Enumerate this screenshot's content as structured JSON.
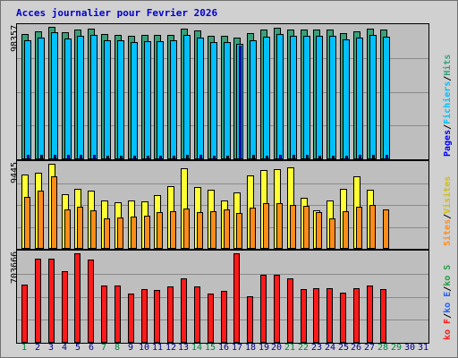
{
  "title": "Acces journalier pour Fevrier 2026",
  "colors": {
    "hits": "#3aa07a",
    "files": "#00c0ff",
    "pages": "#0000ff",
    "visits": "#ffff33",
    "sites": "#ff8c1a",
    "kbytes": "#ff1a1a",
    "weekday_label": "#000080",
    "weekend_label": "#008040"
  },
  "chart_data": [
    {
      "type": "bar",
      "name": "hits-files-pages",
      "ymax_label": "98357",
      "ylim": [
        0,
        98357
      ],
      "categories": [
        "1",
        "2",
        "3",
        "4",
        "5",
        "6",
        "7",
        "8",
        "9",
        "10",
        "11",
        "12",
        "13",
        "14",
        "15",
        "16",
        "17",
        "18",
        "19",
        "20",
        "21",
        "22",
        "23",
        "24",
        "25",
        "26",
        "27",
        "28"
      ],
      "legend": [
        {
          "key": "pages",
          "label": "Pages"
        },
        {
          "key": "files",
          "label": "Fichiers"
        },
        {
          "key": "hits",
          "label": "Hits"
        }
      ],
      "series": [
        {
          "name": "Hits",
          "key": "hits",
          "values": [
            92800,
            95100,
            98357,
            94200,
            96500,
            96900,
            93100,
            92500,
            91800,
            92100,
            92400,
            92600,
            97300,
            95600,
            92000,
            91500,
            90700,
            93400,
            96200,
            97600,
            96200,
            96400,
            96600,
            96300,
            93600,
            95200,
            96800,
            96100
          ]
        },
        {
          "name": "Fichiers",
          "key": "files",
          "values": [
            88100,
            90300,
            94100,
            89700,
            91800,
            92100,
            88600,
            88100,
            86900,
            87400,
            87800,
            88100,
            92400,
            90600,
            87300,
            86900,
            85900,
            88600,
            91300,
            92900,
            91400,
            91700,
            91900,
            91700,
            88900,
            90400,
            92100,
            91300
          ]
        },
        {
          "name": "Pages",
          "key": "pages",
          "values": [
            3000,
            3100,
            3400,
            3300,
            3000,
            3100,
            2900,
            2900,
            2800,
            2800,
            2900,
            2900,
            3000,
            3300,
            2900,
            2900,
            84300,
            3000,
            2900,
            3000,
            3000,
            3000,
            2900,
            2900,
            2900,
            3000,
            3000,
            3000
          ]
        }
      ]
    },
    {
      "type": "bar",
      "name": "visits-sites",
      "ymax_label": "9445",
      "ylim": [
        0,
        9445
      ],
      "categories": [
        "1",
        "2",
        "3",
        "4",
        "5",
        "6",
        "7",
        "8",
        "9",
        "10",
        "11",
        "12",
        "13",
        "14",
        "15",
        "16",
        "17",
        "18",
        "19",
        "20",
        "21",
        "22",
        "23",
        "24",
        "25",
        "26",
        "27",
        "28"
      ],
      "legend": [
        {
          "key": "sites",
          "label": "Sites"
        },
        {
          "key": "visits",
          "label": "Visites"
        }
      ],
      "series": [
        {
          "name": "Visites",
          "key": "visits",
          "values": [
            8300,
            8500,
            9445,
            6100,
            6700,
            6500,
            5400,
            5200,
            5400,
            5300,
            6000,
            7000,
            8900,
            6900,
            6600,
            5400,
            6300,
            8200,
            8700,
            8800,
            9000,
            5700,
            4300,
            5400,
            6700,
            8100,
            6600,
            0
          ]
        },
        {
          "name": "Sites",
          "key": "sites",
          "values": [
            5800,
            6500,
            8100,
            4400,
            4700,
            4300,
            3400,
            3500,
            3600,
            3700,
            4100,
            4200,
            4500,
            4100,
            4200,
            4400,
            4000,
            4600,
            5100,
            5100,
            4900,
            4800,
            4100,
            3400,
            4200,
            4700,
            4900,
            4400
          ]
        }
      ]
    },
    {
      "type": "bar",
      "name": "kbytes",
      "ymax_label": "703666",
      "ylim": [
        0,
        703666
      ],
      "categories": [
        "1",
        "2",
        "3",
        "4",
        "5",
        "6",
        "7",
        "8",
        "9",
        "10",
        "11",
        "12",
        "13",
        "14",
        "15",
        "16",
        "17",
        "18",
        "19",
        "20",
        "21",
        "22",
        "23",
        "24",
        "25",
        "26",
        "27",
        "28"
      ],
      "legend": [
        {
          "key": "kbytes",
          "label": "ko F"
        },
        {
          "key": "kin",
          "label": "ko E"
        },
        {
          "key": "kout",
          "label": "ko S"
        }
      ],
      "series": [
        {
          "name": "ko F",
          "key": "kbytes",
          "values": [
            460000,
            661000,
            661000,
            562000,
            703666,
            655000,
            450000,
            450000,
            385000,
            420000,
            412000,
            440000,
            505000,
            440000,
            385000,
            408000,
            703666,
            365000,
            538000,
            538000,
            505000,
            425000,
            428000,
            430000,
            397000,
            426000,
            450000,
            420000
          ]
        }
      ]
    }
  ],
  "xaxis": {
    "days": [
      "1",
      "2",
      "3",
      "4",
      "5",
      "6",
      "7",
      "8",
      "9",
      "10",
      "11",
      "12",
      "13",
      "14",
      "15",
      "16",
      "17",
      "18",
      "19",
      "20",
      "21",
      "22",
      "23",
      "24",
      "25",
      "26",
      "27",
      "28",
      "29",
      "30",
      "31"
    ],
    "weekend_days": [
      "1",
      "7",
      "8",
      "14",
      "15",
      "21",
      "22",
      "28",
      "29"
    ]
  }
}
